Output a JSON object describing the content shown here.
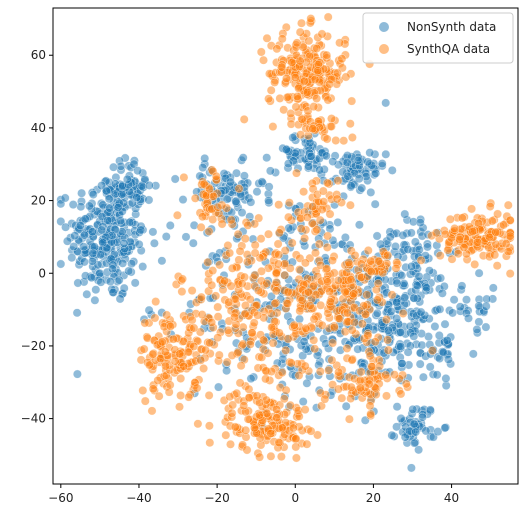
{
  "chart_data": {
    "type": "scatter",
    "title": "",
    "xlabel": "",
    "ylabel": "",
    "xlim": [
      -62,
      57
    ],
    "ylim": [
      -58,
      73
    ],
    "x_ticks": [
      -60,
      -40,
      -20,
      0,
      20,
      40
    ],
    "y_ticks": [
      -40,
      -20,
      0,
      20,
      40,
      60
    ],
    "x_tick_labels": [
      "−60",
      "−40",
      "−20",
      "0",
      "20",
      "40"
    ],
    "y_tick_labels": [
      "−40",
      "−20",
      "0",
      "20",
      "40",
      "60"
    ],
    "grid": false,
    "legend_position": "top-right",
    "series": [
      {
        "name": "NonSynth data",
        "color": "#1f77b4",
        "clusters": [
          {
            "cx": -48,
            "cy": 10,
            "sx": 5,
            "sy": 9,
            "n": 280
          },
          {
            "cx": -42,
            "cy": 24,
            "sx": 3,
            "sy": 3,
            "n": 60
          },
          {
            "cx": 26,
            "cy": -12,
            "sx": 7,
            "sy": 9,
            "n": 250
          },
          {
            "cx": 31,
            "cy": -42,
            "sx": 2.5,
            "sy": 3,
            "n": 50
          },
          {
            "cx": 15,
            "cy": 28,
            "sx": 4,
            "sy": 3,
            "n": 70
          },
          {
            "cx": 2,
            "cy": 33,
            "sx": 4,
            "sy": 2.5,
            "n": 60
          },
          {
            "cx": -18,
            "cy": 22,
            "sx": 5,
            "sy": 4,
            "n": 80
          },
          {
            "cx": 0,
            "cy": -8,
            "sx": 14,
            "sy": 16,
            "n": 280
          },
          {
            "cx": 30,
            "cy": 10,
            "sx": 4,
            "sy": 4,
            "n": 40
          },
          {
            "cx": 45,
            "cy": -10,
            "sx": 4,
            "sy": 3,
            "n": 25
          },
          {
            "cx": 38,
            "cy": -22,
            "sx": 2,
            "sy": 3,
            "n": 15
          }
        ]
      },
      {
        "name": "SynthQA data",
        "color": "#ff7f0e",
        "clusters": [
          {
            "cx": 3,
            "cy": 55,
            "sx": 5,
            "sy": 6,
            "n": 220
          },
          {
            "cx": 47,
            "cy": 10,
            "sx": 5,
            "sy": 3.5,
            "n": 150
          },
          {
            "cx": -32,
            "cy": -22,
            "sx": 4,
            "sy": 6,
            "n": 120
          },
          {
            "cx": -7,
            "cy": -41,
            "sx": 5,
            "sy": 4,
            "n": 140
          },
          {
            "cx": -10,
            "cy": -10,
            "sx": 10,
            "sy": 14,
            "n": 300
          },
          {
            "cx": 12,
            "cy": -6,
            "sx": 6,
            "sy": 6,
            "n": 150
          },
          {
            "cx": 17,
            "cy": -30,
            "sx": 5,
            "sy": 4,
            "n": 80
          },
          {
            "cx": -22,
            "cy": 20,
            "sx": 3,
            "sy": 4,
            "n": 40
          },
          {
            "cx": 7,
            "cy": 40,
            "sx": 3,
            "sy": 2,
            "n": 30
          },
          {
            "cx": 5,
            "cy": 18,
            "sx": 3,
            "sy": 4,
            "n": 50
          },
          {
            "cx": 21,
            "cy": 2,
            "sx": 3,
            "sy": 2,
            "n": 30
          }
        ]
      }
    ]
  }
}
